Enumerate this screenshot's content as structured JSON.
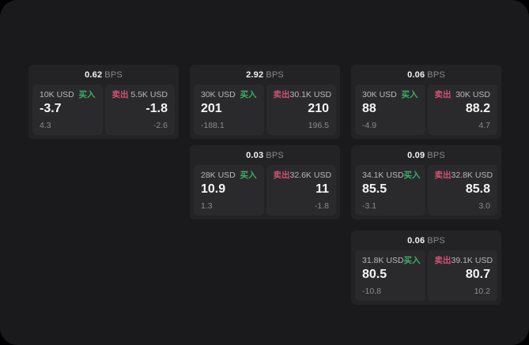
{
  "labels": {
    "bps_unit": "BPS",
    "buy": "买入",
    "sell": "卖出"
  },
  "colors": {
    "buy": "#3fae66",
    "sell": "#cf5272"
  },
  "cards": [
    {
      "row": 1,
      "col": 1,
      "bps": "0.62",
      "buy": {
        "amount": "10K USD",
        "value": "-3.7",
        "delta": "4.3"
      },
      "sell": {
        "amount": "5.5K USD",
        "value": "-1.8",
        "delta": "-2.6"
      }
    },
    {
      "row": 1,
      "col": 2,
      "bps": "2.92",
      "buy": {
        "amount": "30K USD",
        "value": "201",
        "delta": "-188.1"
      },
      "sell": {
        "amount": "30.1K USD",
        "value": "210",
        "delta": "196.5"
      }
    },
    {
      "row": 1,
      "col": 3,
      "bps": "0.06",
      "buy": {
        "amount": "30K USD",
        "value": "88",
        "delta": "-4.9"
      },
      "sell": {
        "amount": "30K USD",
        "value": "88.2",
        "delta": "4.7"
      }
    },
    {
      "row": 2,
      "col": 2,
      "bps": "0.03",
      "buy": {
        "amount": "28K USD",
        "value": "10.9",
        "delta": "1.3"
      },
      "sell": {
        "amount": "32.6K USD",
        "value": "11",
        "delta": "-1.8"
      }
    },
    {
      "row": 2,
      "col": 3,
      "bps": "0.09",
      "buy": {
        "amount": "34.1K USD",
        "value": "85.5",
        "delta": "-3.1"
      },
      "sell": {
        "amount": "32.8K USD",
        "value": "85.8",
        "delta": "3.0"
      }
    },
    {
      "row": 3,
      "col": 3,
      "bps": "0.06",
      "buy": {
        "amount": "31.8K USD",
        "value": "80.5",
        "delta": "-10.8"
      },
      "sell": {
        "amount": "39.1K USD",
        "value": "80.7",
        "delta": "10.2"
      }
    }
  ]
}
